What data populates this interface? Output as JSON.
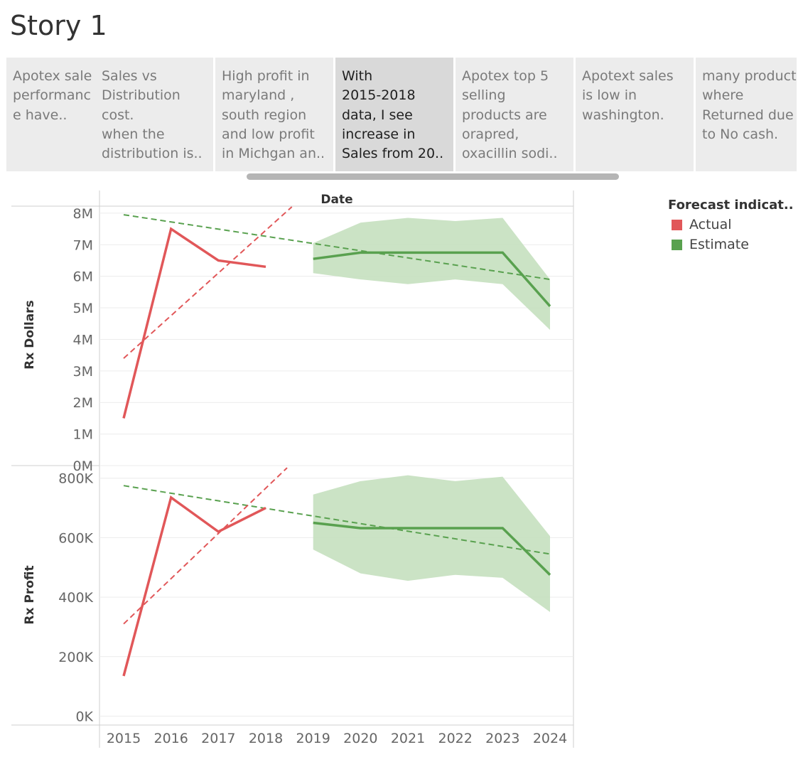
{
  "story": {
    "title": "Story 1",
    "points": [
      {
        "text": "Apotex sale\nperformanc\ne have.."
      },
      {
        "text": "Sales vs\nDistribution\ncost.\nwhen the\ndistribution is.."
      },
      {
        "text": "High profit in\nmaryland ,\nsouth region\nand low profit\nin Michgan an.."
      },
      {
        "text": "With\n2015-2018\ndata, I see\nincrease in\nSales from 20..",
        "active": true
      },
      {
        "text": "Apotex top 5\nselling\nproducts are\norapred,\noxacillin sodi.."
      },
      {
        "text": "Apotext sales\nis low in\nwashington."
      },
      {
        "text": "many product\nwhere\nReturned due\nto No cash."
      }
    ]
  },
  "legend": {
    "title": "Forecast indicat..",
    "items": [
      {
        "label": "Actual",
        "color": "#e15759"
      },
      {
        "label": "Estimate",
        "color": "#59a14f"
      }
    ]
  },
  "chart_data": {
    "type": "line",
    "column_header": "Date",
    "x": [
      2015,
      2016,
      2017,
      2018,
      2019,
      2020,
      2021,
      2022,
      2023,
      2024
    ],
    "x_tick_labels": [
      "2015",
      "2016",
      "2017",
      "2018",
      "2019",
      "2020",
      "2021",
      "2022",
      "2023",
      "2024"
    ],
    "colors": {
      "actual": "#e15759",
      "estimate": "#59a14f",
      "band": "#c5e0bf",
      "grid": "#ececec",
      "axis": "#cfcfcf"
    },
    "panels": [
      {
        "ylabel": "Rx Dollars",
        "ylim": [
          0,
          8200000
        ],
        "y_ticks": [
          0,
          1000000,
          2000000,
          3000000,
          4000000,
          5000000,
          6000000,
          7000000,
          8000000
        ],
        "y_tick_labels": [
          "0M",
          "1M",
          "2M",
          "3M",
          "4M",
          "5M",
          "6M",
          "7M",
          "8M"
        ],
        "actual": {
          "x": [
            2015,
            2016,
            2017,
            2018
          ],
          "values": [
            1500000,
            7500000,
            6500000,
            6300000
          ]
        },
        "estimate": {
          "x": [
            2019,
            2020,
            2021,
            2022,
            2023,
            2024
          ],
          "values": [
            6550000,
            6750000,
            6750000,
            6750000,
            6750000,
            5050000
          ]
        },
        "band": {
          "x": [
            2019,
            2020,
            2021,
            2022,
            2023,
            2024
          ],
          "upper": [
            7050000,
            7700000,
            7850000,
            7750000,
            7850000,
            5900000
          ],
          "lower": [
            6100000,
            5900000,
            5750000,
            5900000,
            5750000,
            4300000
          ]
        },
        "actual_trend": {
          "x": [
            2015,
            2018.55
          ],
          "values": [
            3400000,
            8200000
          ]
        },
        "estimate_trend": {
          "x": [
            2015,
            2024
          ],
          "values": [
            7950000,
            5900000
          ]
        }
      },
      {
        "ylabel": "Rx Profit",
        "ylim": [
          -30000,
          840000
        ],
        "y_ticks": [
          0,
          200000,
          400000,
          600000,
          800000
        ],
        "y_tick_labels": [
          "0K",
          "200K",
          "400K",
          "600K",
          "800K"
        ],
        "actual": {
          "x": [
            2015,
            2016,
            2017,
            2018
          ],
          "values": [
            135000,
            735000,
            620000,
            700000
          ]
        },
        "estimate": {
          "x": [
            2019,
            2020,
            2021,
            2022,
            2023,
            2024
          ],
          "values": [
            650000,
            632000,
            632000,
            632000,
            632000,
            475000
          ]
        },
        "band": {
          "x": [
            2019,
            2020,
            2021,
            2022,
            2023,
            2024
          ],
          "upper": [
            745000,
            790000,
            810000,
            790000,
            805000,
            605000
          ],
          "lower": [
            560000,
            480000,
            455000,
            475000,
            465000,
            350000
          ]
        },
        "actual_trend": {
          "x": [
            2015,
            2018.45
          ],
          "values": [
            310000,
            835000
          ]
        },
        "estimate_trend": {
          "x": [
            2015,
            2024
          ],
          "values": [
            775000,
            545000
          ]
        }
      }
    ]
  }
}
